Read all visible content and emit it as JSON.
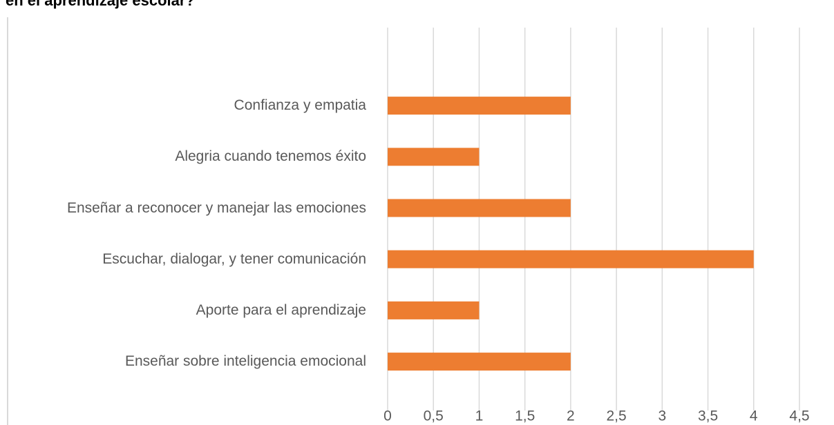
{
  "chart_data": {
    "type": "bar",
    "orientation": "horizontal",
    "title": "en el aprendizaje escolar?",
    "categories": [
      "Confianza y empatia",
      "Alegria cuando tenemos éxito",
      "Enseñar a reconocer y manejar las emociones",
      "Escuchar, dialogar, y tener comunicación",
      "Aporte para el aprendizaje",
      "Enseñar sobre inteligencia emocional"
    ],
    "values": [
      2,
      1,
      2,
      4,
      1,
      2
    ],
    "color": "#ed7d31",
    "xlim": [
      0,
      4.5
    ],
    "xticks": [
      0,
      {
        "value": 0.5,
        "label": "0,5"
      },
      1,
      {
        "value": 1.5,
        "label": "1,5"
      },
      2,
      {
        "value": 2.5,
        "label": "2,5"
      },
      3,
      {
        "value": 3.5,
        "label": "3,5"
      },
      4,
      {
        "value": 4.5,
        "label": "4,5"
      }
    ],
    "grid": true
  }
}
